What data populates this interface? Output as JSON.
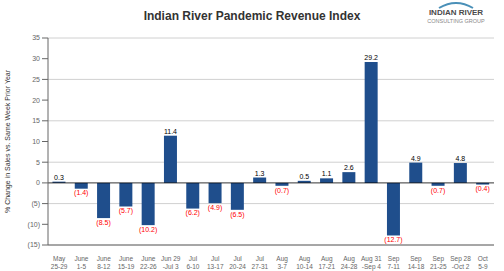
{
  "chart_data": {
    "type": "bar",
    "title": "Indian River Pandemic Revenue Index",
    "ylabel": "% Change in Sales vs. Same Week Prior Year",
    "categories": [
      "May\n25-29",
      "June\n1-5",
      "June\n8-12",
      "June\n15-19",
      "June\n22-26",
      "Jun 29\n-Jul 3",
      "Jul\n6-10",
      "Jul\n13-17",
      "Jul\n20-24",
      "Jul\n27-31",
      "Aug\n3-7",
      "Aug\n10-14",
      "Aug\n17-21",
      "Aug\n24-28",
      "Aug 31\n-Sep 4",
      "Sep\n7-11",
      "Sep\n14-18",
      "Sep\n21-25",
      "Sep 28\n-Oct 2",
      "Oct\n5-9"
    ],
    "values": [
      0.3,
      -1.4,
      -8.5,
      -5.7,
      -10.2,
      11.4,
      -6.2,
      -4.9,
      -6.5,
      1.3,
      -0.7,
      0.5,
      1.1,
      2.6,
      29.2,
      -12.7,
      4.9,
      -0.7,
      4.8,
      -0.4
    ],
    "value_labels": [
      "0.3",
      "(1.4)",
      "(8.5)",
      "(5.7)",
      "(10.2)",
      "11.4",
      "(6.2)",
      "(4.9)",
      "(6.5)",
      "1.3",
      "(0.7)",
      "0.5",
      "1.1",
      "2.6",
      "29.2",
      "(12.7)",
      "4.9",
      "(0.7)",
      "4.8",
      "(0.4)"
    ],
    "data_labels": true,
    "color": "#1f4e8c",
    "ylim": [
      -15,
      35
    ],
    "yticks": [
      {
        "value": -15,
        "label": "(15)"
      },
      {
        "value": -10,
        "label": "(10)"
      },
      {
        "value": -5,
        "label": "(5)"
      },
      0,
      5,
      10,
      15,
      20,
      25,
      30,
      35
    ],
    "grid": true,
    "annotations": [
      "INDIAN RIVER",
      "CONSULTING GROUP"
    ]
  }
}
